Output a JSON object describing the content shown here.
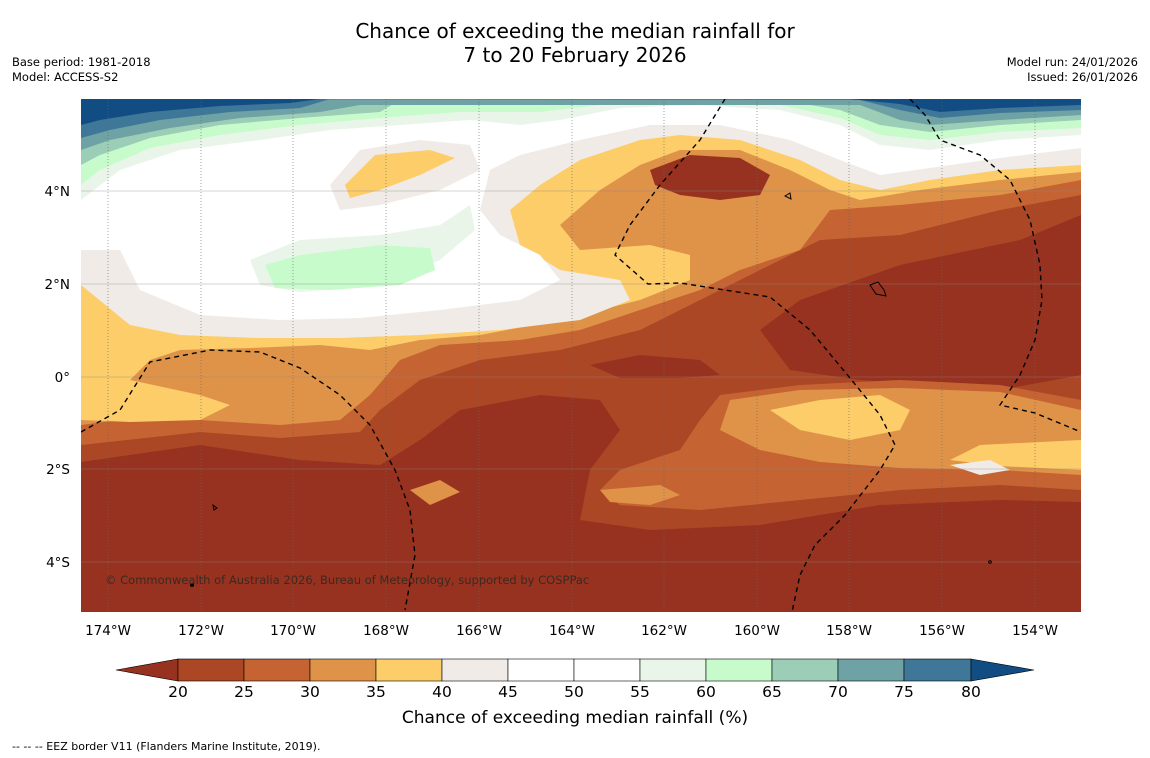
{
  "title": {
    "line1": "Chance of exceeding the median rainfall for",
    "line2": "7 to 20 February 2026"
  },
  "meta": {
    "base_period": "Base period: 1981-2018",
    "model": "Model: ACCESS-S2",
    "model_run": "Model run: 24/01/2026",
    "issued": "Issued: 26/01/2026"
  },
  "map": {
    "longitude_labels": [
      "174°W",
      "172°W",
      "170°W",
      "168°W",
      "166°W",
      "164°W",
      "162°W",
      "160°W",
      "158°W",
      "156°W",
      "154°W"
    ],
    "latitude_labels": [
      "4°N",
      "2°N",
      "0°",
      "2°S",
      "4°S"
    ],
    "copyright": "© Commonwealth of Australia 2026, Bureau of Meteorology, supported by COSPPac"
  },
  "colorbar": {
    "label": "Chance of exceeding median rainfall (%)",
    "ticks": [
      "20",
      "25",
      "30",
      "35",
      "40",
      "45",
      "50",
      "55",
      "60",
      "65",
      "70",
      "75",
      "80"
    ],
    "colors": {
      "below20": "#973220",
      "c20_25": "#ac4726",
      "c25_30": "#c56432",
      "c30_35": "#df9349",
      "c35_40": "#fdcd6a",
      "c40_45": "#f0ebe6",
      "c45_50": "#ffffff",
      "c50_55": "#ffffff",
      "c55_60": "#eaf5ea",
      "c60_65": "#c8fbcc",
      "c65_70": "#9ccdb7",
      "c70_75": "#6ea2a4",
      "c75_80": "#3f7798",
      "above80": "#114d83"
    }
  },
  "footnote": "--  --  -- EEZ border V11 (Flanders Marine Institute, 2019)."
}
